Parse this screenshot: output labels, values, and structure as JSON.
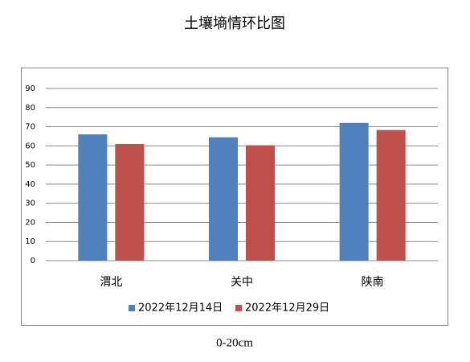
{
  "chart_data": {
    "type": "bar",
    "title": "土壤墒情环比图",
    "categories": [
      "渭北",
      "关中",
      "陕南"
    ],
    "series": [
      {
        "name": "2022年12月14日",
        "color": "#4f81bd",
        "values": [
          66,
          64.5,
          72
        ]
      },
      {
        "name": "2022年12月29日",
        "color": "#c0504d",
        "values": [
          61,
          60.3,
          68.3
        ]
      }
    ],
    "ylim": [
      0,
      90
    ],
    "yticks": [
      0,
      10,
      20,
      30,
      40,
      50,
      60,
      70,
      80,
      90
    ],
    "grid": true,
    "legend": "bottom",
    "annotation": "0-20cm"
  }
}
